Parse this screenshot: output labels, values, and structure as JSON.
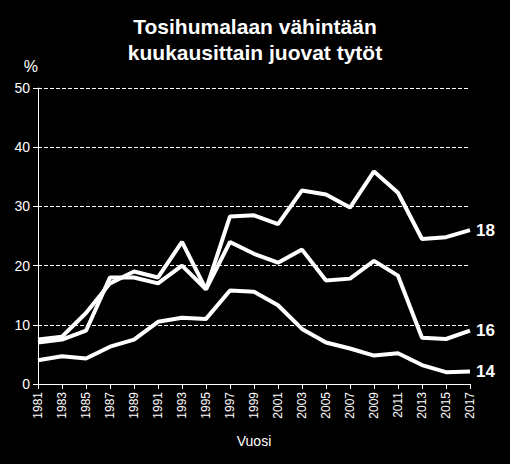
{
  "chart_data": {
    "type": "line",
    "title": "Tosihumalaan vähintään\nkuukausittain juovat tytöt",
    "x_label": "Vuosi",
    "y_label": "%",
    "categories": [
      "1981",
      "1983",
      "1985",
      "1987",
      "1989",
      "1991",
      "1993",
      "1995",
      "1997",
      "1999",
      "2001",
      "2003",
      "2005",
      "2007",
      "2009",
      "2011",
      "2013",
      "2015",
      "2017"
    ],
    "series": [
      {
        "name": "18",
        "color": "#ffffff",
        "values": [
          7.5,
          8,
          12,
          17,
          19,
          18,
          24,
          16,
          28.3,
          28.5,
          27,
          32.7,
          32,
          29.8,
          35.9,
          32.3,
          24.5,
          24.8,
          26
        ]
      },
      {
        "name": "16",
        "color": "#ffffff",
        "values": [
          7,
          7.5,
          9,
          18,
          18,
          17,
          20,
          16,
          24,
          22,
          20.5,
          22.7,
          17.5,
          17.8,
          20.8,
          18.3,
          7.8,
          7.6,
          9
        ]
      },
      {
        "name": "14",
        "color": "#ffffff",
        "values": [
          4,
          4.7,
          4.3,
          6.3,
          7.5,
          10.5,
          11.2,
          11,
          15.8,
          15.6,
          13.3,
          9.3,
          7,
          6,
          4.8,
          5.2,
          3.2,
          2,
          2.1
        ]
      }
    ],
    "ylim": [
      0,
      50
    ],
    "yticks": [
      0,
      10,
      20,
      30,
      40,
      50
    ],
    "grid": true
  }
}
